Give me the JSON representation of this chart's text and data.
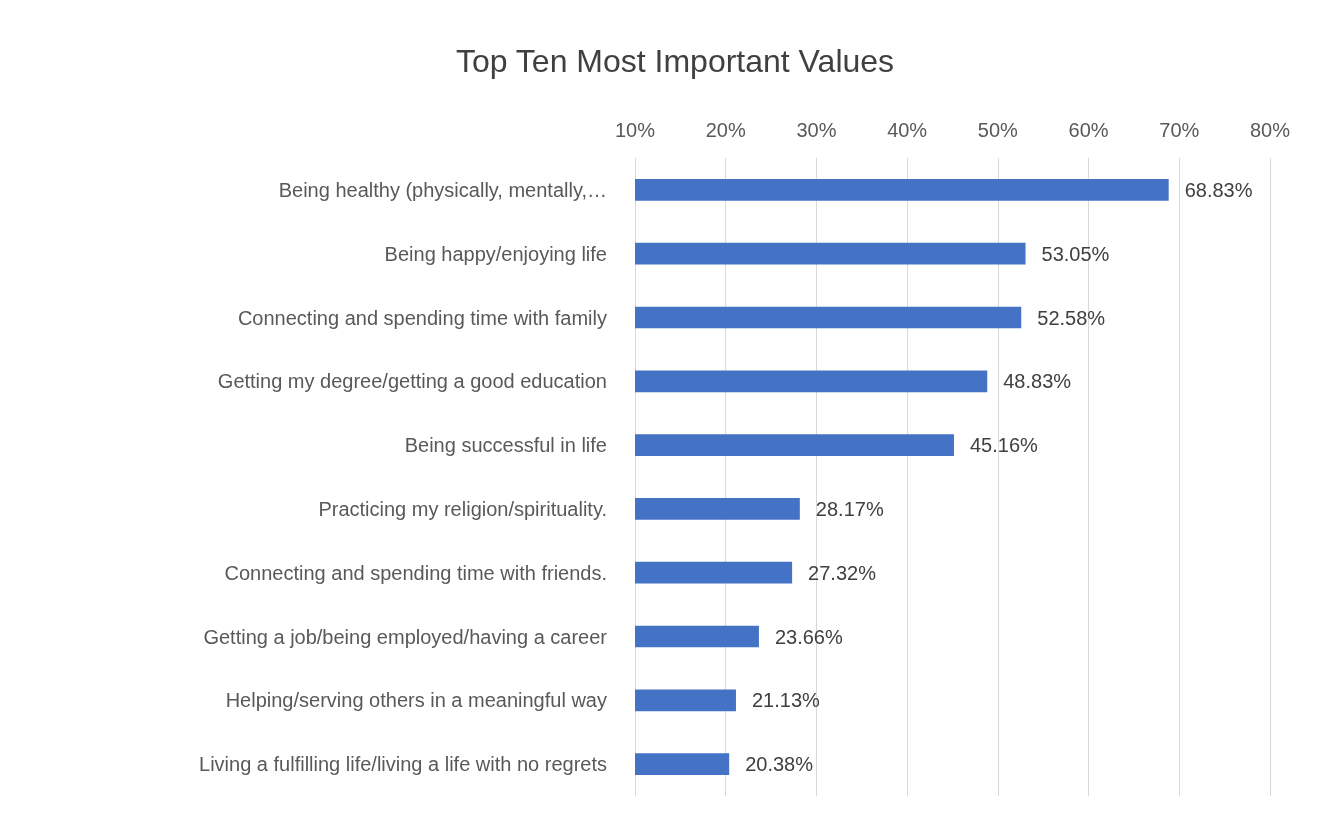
{
  "chart_data": {
    "type": "bar",
    "orientation": "horizontal",
    "title": "Top Ten Most Important Values",
    "categories": [
      "Being healthy (physically, mentally,…",
      "Being happy/enjoying life",
      "Connecting and spending time with family",
      "Getting my degree/getting a good education",
      "Being successful in life",
      "Practicing my religion/spirituality.",
      "Connecting and spending time with friends.",
      "Getting a job/being employed/having a career",
      "Helping/serving others in a meaningful way",
      "Living a fulfilling life/living a life with no regrets"
    ],
    "values": [
      68.83,
      53.05,
      52.58,
      48.83,
      45.16,
      28.17,
      27.32,
      23.66,
      21.13,
      20.38
    ],
    "value_labels": [
      "68.83%",
      "53.05%",
      "52.58%",
      "48.83%",
      "45.16%",
      "28.17%",
      "27.32%",
      "23.66%",
      "21.13%",
      "20.38%"
    ],
    "color": "#4472c4",
    "xlim": [
      10,
      80
    ],
    "xticks": [
      {
        "value": 10,
        "label": "10%"
      },
      {
        "value": 20,
        "label": "20%"
      },
      {
        "value": 30,
        "label": "30%"
      },
      {
        "value": 40,
        "label": "40%"
      },
      {
        "value": 50,
        "label": "50%"
      },
      {
        "value": 60,
        "label": "60%"
      },
      {
        "value": 70,
        "label": "70%"
      },
      {
        "value": 80,
        "label": "80%"
      }
    ],
    "grid": "x"
  }
}
